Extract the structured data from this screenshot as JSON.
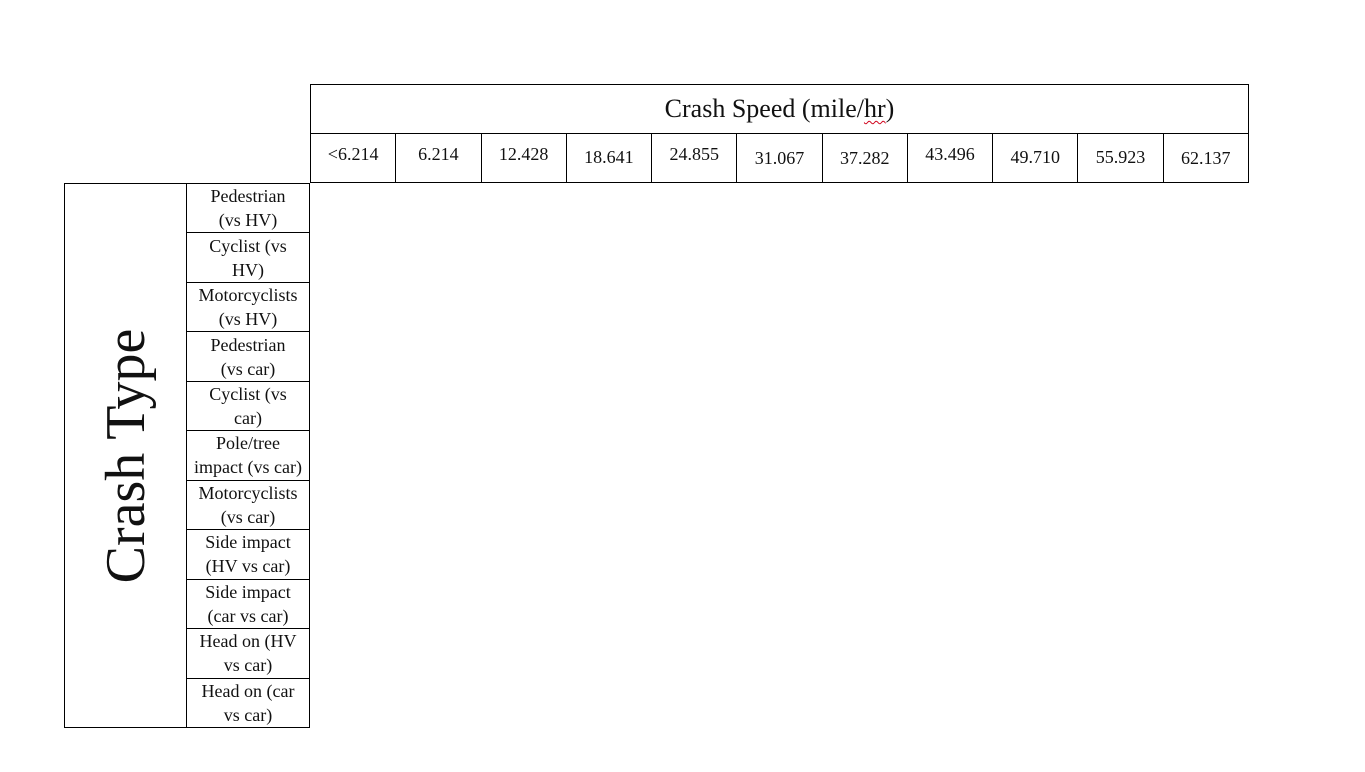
{
  "header": {
    "title_prefix": "Crash Speed (mile/",
    "title_unit_word": "hr",
    "title_suffix": ")"
  },
  "speeds": [
    "<6.214",
    "6.214",
    "12.428",
    "18.641",
    "24.855",
    "31.067",
    "37.282",
    "43.496",
    "49.710",
    "55.923",
    "62.137"
  ],
  "side": {
    "label": "Crash Type"
  },
  "crash_types": [
    {
      "line1": "Pedestrian",
      "line2": "(vs HV)"
    },
    {
      "line1": "Cyclist (vs",
      "line2": "HV)"
    },
    {
      "line1": "Motorcyclists",
      "line2": "(vs HV)"
    },
    {
      "line1": "Pedestrian",
      "line2": "(vs car)"
    },
    {
      "line1": "Cyclist (vs",
      "line2": "car)"
    },
    {
      "line1": "Pole/tree",
      "line2": "impact (vs car)"
    },
    {
      "line1": "Motorcyclists",
      "line2": "(vs car)"
    },
    {
      "line1": "Side impact",
      "line2": "(HV vs car)"
    },
    {
      "line1": "Side impact",
      "line2": "(car vs car)"
    },
    {
      "line1": "Head on (HV",
      "line2": "vs car)"
    },
    {
      "line1": "Head on (car",
      "line2": "vs car)"
    }
  ]
}
